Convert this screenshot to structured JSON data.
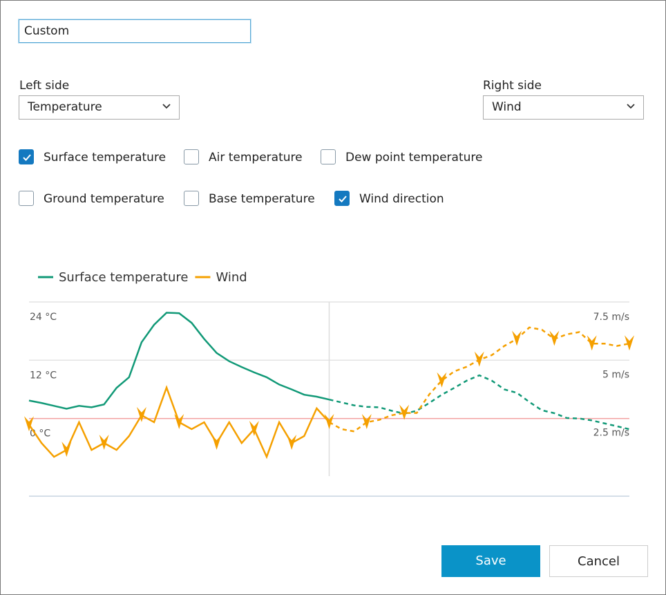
{
  "name_input": "Custom",
  "left_side": {
    "label": "Left side",
    "value": "Temperature"
  },
  "right_side": {
    "label": "Right side",
    "value": "Wind"
  },
  "checkboxes": [
    {
      "label": "Surface temperature",
      "checked": true
    },
    {
      "label": "Air temperature",
      "checked": false
    },
    {
      "label": "Dew point temperature",
      "checked": false
    },
    {
      "label": "Ground temperature",
      "checked": false
    },
    {
      "label": "Base temperature",
      "checked": false
    },
    {
      "label": "Wind direction",
      "checked": true
    }
  ],
  "chart_data": {
    "type": "line",
    "x": [
      0,
      1,
      2,
      3,
      4,
      5,
      6,
      7,
      8,
      9,
      10,
      11,
      12,
      13,
      14,
      15,
      16,
      17,
      18,
      19,
      20,
      21,
      22,
      23,
      24,
      25,
      26,
      27,
      28,
      29,
      30,
      31,
      32,
      33,
      34,
      35,
      36,
      37,
      38,
      39,
      40,
      41,
      42,
      43,
      44,
      45,
      46,
      47,
      48
    ],
    "xlim": [
      0,
      48
    ],
    "now_x": 24,
    "ylim": [
      -16,
      24
    ],
    "yticks": [
      {
        "value": 0,
        "label": "0 °C"
      },
      {
        "value": 12,
        "label": "12 °C"
      },
      {
        "value": 24,
        "label": "24 °C"
      }
    ],
    "y2lim": [
      -0.9,
      7.5
    ],
    "y2ticks": [
      {
        "value": 2.5,
        "label": "2.5 m/s"
      },
      {
        "value": 5,
        "label": "5 m/s"
      },
      {
        "value": 7.5,
        "label": "7.5 m/s"
      }
    ],
    "series": [
      {
        "name": "Surface temperature",
        "color": "#119977",
        "values": [
          3.7,
          3.2,
          2.6,
          2.0,
          2.6,
          2.3,
          2.9,
          6.3,
          8.5,
          15.7,
          19.3,
          21.8,
          21.7,
          19.7,
          16.4,
          13.5,
          11.8,
          10.6,
          9.5,
          8.5,
          7.0,
          6.0,
          4.9,
          4.5,
          3.9,
          3.3,
          2.7,
          2.4,
          2.3,
          1.6,
          1.0,
          1.6,
          3.2,
          4.9,
          6.3,
          7.8,
          8.9,
          7.8,
          6.0,
          5.3,
          3.4,
          1.7,
          1.1,
          0.1,
          0,
          -0.4,
          -1.0,
          -1.6,
          -2.2
        ]
      },
      {
        "name": "Wind",
        "color": "#f5a000",
        "axis": "y2",
        "values": [
          2.2,
          1.4,
          0.8,
          1.1,
          2.3,
          1.1,
          1.4,
          1.1,
          1.7,
          2.6,
          2.3,
          3.8,
          2.3,
          2.0,
          2.3,
          1.4,
          2.3,
          1.4,
          2.0,
          0.8,
          2.3,
          1.4,
          1.7,
          2.9,
          2.3,
          2.0,
          1.9,
          2.3,
          2.4,
          2.6,
          2.7,
          2.7,
          3.5,
          4.1,
          4.5,
          4.7,
          5.0,
          5.2,
          5.6,
          5.9,
          6.4,
          6.3,
          5.9,
          6.1,
          6.2,
          5.7,
          5.7,
          5.6,
          5.7
        ]
      }
    ]
  },
  "buttons": {
    "save": "Save",
    "cancel": "Cancel"
  }
}
